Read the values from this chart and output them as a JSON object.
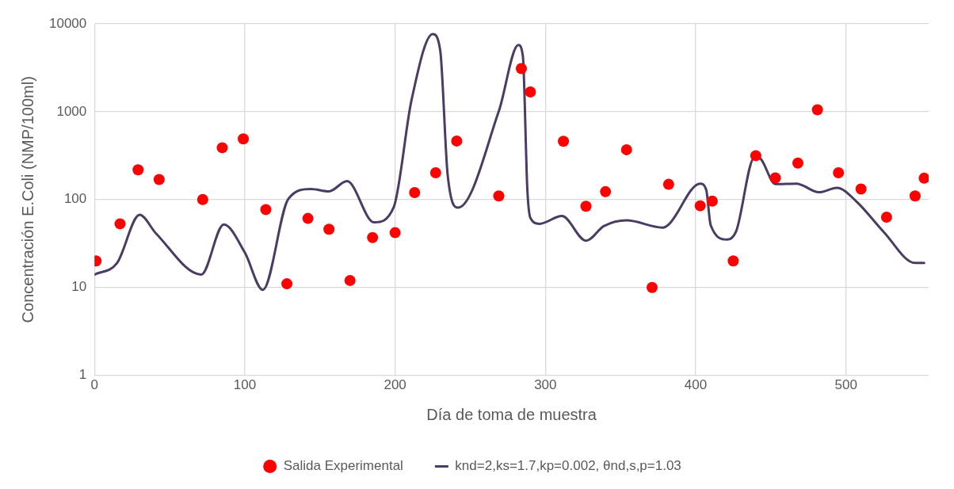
{
  "chart_data": {
    "type": "scatter",
    "xlabel": "Día de toma de muestra",
    "ylabel": "Concentración E.Coli (NMP/100ml)",
    "xlim": [
      0,
      555
    ],
    "xticks": [
      0,
      100,
      200,
      300,
      400,
      500
    ],
    "ylim": [
      1,
      10000
    ],
    "yticks": [
      1,
      10,
      100,
      1000,
      10000
    ],
    "log": "y",
    "grid": true,
    "legend": "bottom",
    "series": [
      {
        "name": "Salida Experimental",
        "marker": "circle",
        "color": "#ff0000",
        "x": [
          1,
          17,
          29,
          43,
          72,
          85,
          99,
          114,
          128,
          142,
          156,
          170,
          185,
          200,
          213,
          227,
          241,
          269,
          284,
          290,
          312,
          327,
          340,
          354,
          371,
          382,
          403,
          411,
          425,
          440,
          453,
          468,
          481,
          495,
          510,
          527,
          546,
          552
        ],
        "values": [
          20,
          53,
          218,
          169,
          100,
          389,
          490,
          77,
          11,
          61,
          46,
          12,
          37,
          42,
          120,
          202,
          464,
          110,
          3090,
          1675,
          461,
          84,
          123,
          369,
          10,
          149,
          85,
          96,
          20,
          316,
          176,
          260,
          1052,
          202,
          132,
          63,
          110,
          175
        ]
      },
      {
        "name": "knd=2,ks=1.7,kp=0.002, θnd,s,p=1.03",
        "type": "line",
        "marker": "none",
        "line_style": "solid",
        "color": "#4a3c63",
        "x": [
          0,
          15,
          30,
          41,
          71,
          86,
          100,
          112,
          129,
          144,
          156,
          168,
          186,
          199,
          211,
          225,
          230,
          235,
          242,
          269,
          282,
          285,
          288,
          290,
          296,
          311,
          327,
          339,
          354,
          378,
          382,
          403,
          407,
          410,
          421,
          427,
          439,
          442,
          453,
          467,
          482,
          494,
          507,
          525,
          546,
          552
        ],
        "values": [
          14,
          19,
          67,
          41,
          14,
          52,
          25,
          9.4,
          102,
          132,
          124,
          162,
          55,
          81,
          1372,
          7650,
          5020,
          189,
          81,
          1012,
          5730,
          4310,
          129,
          62,
          53,
          65,
          34,
          50,
          58,
          48,
          52,
          152,
          129,
          51,
          35,
          44,
          298,
          298,
          150,
          152,
          121,
          136,
          95,
          43,
          19,
          19
        ]
      }
    ]
  }
}
